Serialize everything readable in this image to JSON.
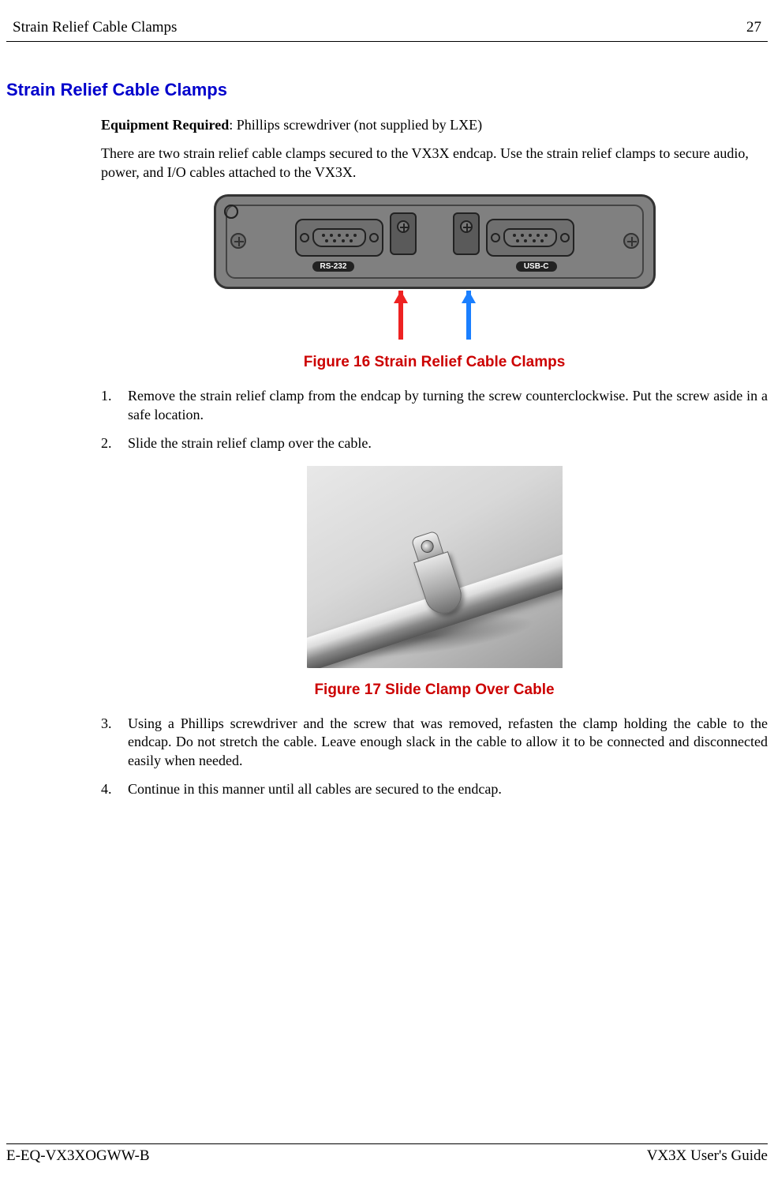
{
  "header": {
    "title": "Strain Relief Cable Clamps",
    "page": "27"
  },
  "h1": "Strain Relief Cable Clamps",
  "equip_label": "Equipment Required",
  "equip_text": ": Phillips screwdriver (not supplied by LXE)",
  "intro": "There are two strain relief cable clamps secured to the VX3X endcap.  Use the strain relief clamps to secure audio, power, and I/O cables attached to the VX3X.",
  "fig16": {
    "caption": "Figure 16  Strain Relief Cable Clamps",
    "port_left": "RS-232",
    "port_right": "USB-C",
    "arrow_color_left": "#ee2222",
    "arrow_color_right": "#1a7fff"
  },
  "steps12": [
    "Remove the strain relief clamp from the endcap by turning the screw counterclockwise. Put the screw aside in a safe location.",
    "Slide the strain relief clamp over the cable."
  ],
  "fig17": {
    "caption": "Figure 17  Slide Clamp Over Cable"
  },
  "steps34": [
    "Using a Phillips screwdriver and the screw that was removed, refasten the clamp holding the cable to the endcap. Do not stretch the cable. Leave enough slack in the cable to allow it to be connected and disconnected easily when needed.",
    "Continue in this manner until all cables are secured to the endcap."
  ],
  "footer": {
    "left": "E-EQ-VX3XOGWW-B",
    "right": "VX3X User's Guide"
  },
  "colors": {
    "heading": "#0000cc",
    "figcap": "#cc0000",
    "text": "#000000",
    "bg": "#ffffff"
  }
}
